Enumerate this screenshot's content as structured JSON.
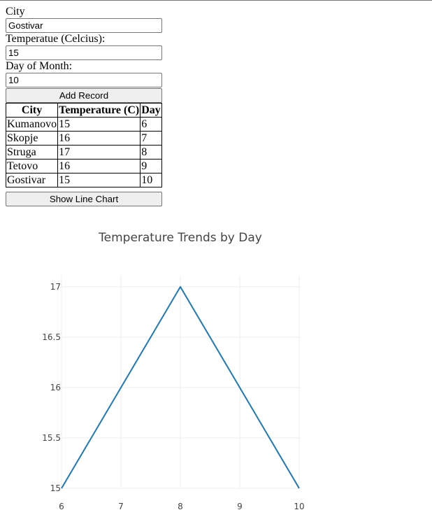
{
  "form": {
    "city_label": "City",
    "city_value": "Gostivar",
    "temp_label": "Temperatue (Celcius):",
    "temp_value": "15",
    "day_label": "Day of Month:",
    "day_value": "10",
    "add_button": "Add Record"
  },
  "table": {
    "headers": [
      "City",
      "Temperature (C)",
      "Day"
    ],
    "rows": [
      [
        "Kumanovo",
        "15",
        "6"
      ],
      [
        "Skopje",
        "16",
        "7"
      ],
      [
        "Struga",
        "17",
        "8"
      ],
      [
        "Tetovo",
        "16",
        "9"
      ],
      [
        "Gostivar",
        "15",
        "10"
      ]
    ]
  },
  "show_chart_button": "Show Line Chart",
  "colors": {
    "line": "#1f77b4",
    "grid": "#eeeeee",
    "tick_text": "#444444",
    "title_text": "#444444"
  },
  "chart_data": {
    "type": "line",
    "title": "Temperature Trends by Day",
    "x": [
      6,
      7,
      8,
      9,
      10
    ],
    "series": [
      {
        "values": [
          15,
          16,
          17,
          16,
          15
        ]
      }
    ],
    "xlim": [
      6,
      10
    ],
    "ylim": [
      15,
      17
    ],
    "x_ticks": [
      6,
      7,
      8,
      9,
      10
    ],
    "y_ticks": [
      15,
      15.5,
      16,
      16.5,
      17
    ],
    "xlabel": "",
    "ylabel": "",
    "grid": true,
    "legend": "none"
  }
}
